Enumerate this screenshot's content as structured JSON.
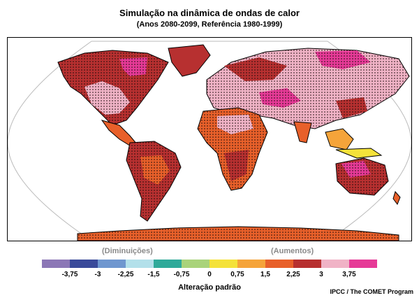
{
  "title": "Simulação na dinâmica de ondas de calor",
  "subtitle": "(Anos 2080-2099, Referência 1980-1999)",
  "legend": {
    "decreases_label": "(Diminuições)",
    "increases_label": "(Aumentos)",
    "axis_label": "Alteração padrão",
    "colors": [
      "#8c77b6",
      "#3a4a9a",
      "#6f97cf",
      "#b3e0ea",
      "#2faa9a",
      "#a9d37a",
      "#f4e23a",
      "#f5a43a",
      "#e8602a",
      "#b73030",
      "#f0b3c6",
      "#e63a97"
    ],
    "tick_labels": [
      "-3,75",
      "-3",
      "-2,25",
      "-1,5",
      "-0,75",
      "0",
      "0,75",
      "1,5",
      "2,25",
      "3",
      "3,75"
    ]
  },
  "credit": "IPCC / The COMET Program",
  "map": {
    "projection": "Robinson-like world map",
    "stippling": "dots mark regions of significant change"
  }
}
